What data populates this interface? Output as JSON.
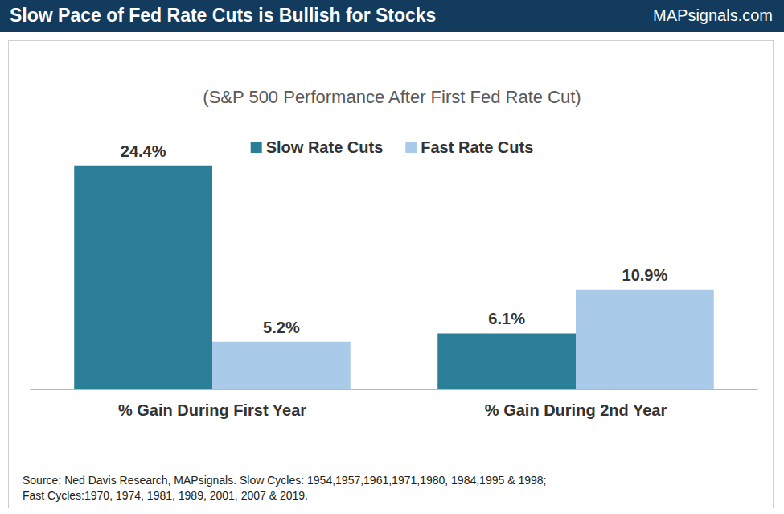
{
  "chart_data": {
    "type": "bar",
    "title": "Slow Pace of Fed Rate Cuts is Bullish for Stocks",
    "logo": "MAPsignals.com",
    "subtitle": "(S&P 500 Performance After First Fed Rate Cut)",
    "categories": [
      "% Gain During First Year",
      "% Gain During 2nd Year"
    ],
    "series": [
      {
        "name": "Slow Rate Cuts",
        "color": "#2a7e98",
        "values": [
          24.4,
          6.1
        ],
        "value_labels": [
          "24.4%",
          "6.1%"
        ]
      },
      {
        "name": "Fast Rate Cuts",
        "color": "#a9cbe9",
        "values": [
          5.2,
          10.9
        ],
        "value_labels": [
          "5.2%",
          "10.9%"
        ]
      }
    ],
    "ylim": [
      0,
      27
    ],
    "grid": false,
    "legend": "top",
    "data_labels": true,
    "tick_labels": "x",
    "source": [
      "Source: Ned Davis Research, MAPsignals. Slow Cycles: 1954,1957,1961,1971,1980, 1984,1995 & 1998;",
      "Fast Cycles:1970, 1974, 1981, 1989, 2001, 2007 & 2019."
    ]
  }
}
